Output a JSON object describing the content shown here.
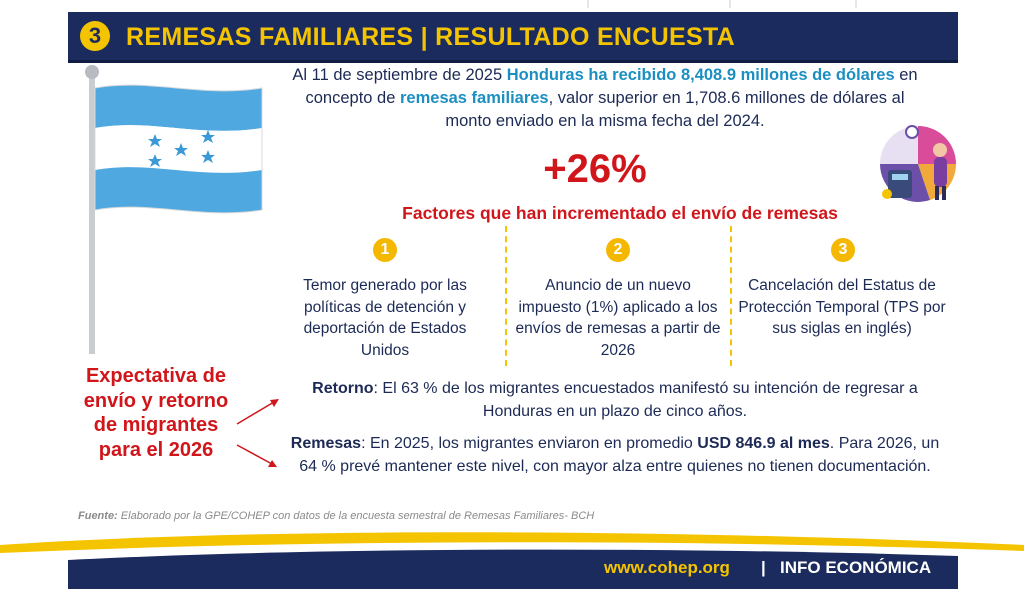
{
  "header": {
    "number": "3",
    "title": "REMESAS FAMILIARES | RESULTADO ENCUESTA"
  },
  "intro": [
    "Al 11 de septiembre de 2025 ",
    "Honduras ha recibido 8,408.9 millones de dólares",
    " en concepto de ",
    "remesas familiares",
    ", valor superior en 1,708.6 millones de dólares al monto enviado en la misma fecha del 2024."
  ],
  "highlight": "+26%",
  "factors": {
    "title": "Factores que han incrementado el envío de remesas",
    "items": [
      {
        "number": "1",
        "text": "Temor generado por las políticas de detención y deportación de Estados Unidos"
      },
      {
        "number": "2",
        "text": "Anuncio de un nuevo impuesto (1%) aplicado a los envíos de remesas a partir de 2026"
      },
      {
        "number": "3",
        "text": "Cancelación del Estatus de Protección Temporal (TPS por sus siglas en inglés)"
      }
    ]
  },
  "expectation": {
    "label": "Expectativa de envío y retorno de migrantes para el 2026",
    "items": [
      {
        "parts": [
          "Retorno",
          ": El 63 % de los migrantes encuestados manifestó su intención de regresar a Honduras en un plazo de cinco años."
        ]
      },
      {
        "parts": [
          "Remesas",
          ": En 2025, los migrantes enviaron en promedio ",
          "USD 846.9 al mes",
          ". Para 2026, un 64 % prevé mantener este nivel, con mayor alza entre quienes no tienen documentación."
        ]
      }
    ]
  },
  "source": {
    "label": "Fuente:",
    "text": " Elaborado por la GPE/COHEP con datos de la encuesta semestral de Remesas Familiares- BCH"
  },
  "footer": {
    "url": "www.cohep.org",
    "separator": "|",
    "section": "INFO ECONÓMICA"
  }
}
